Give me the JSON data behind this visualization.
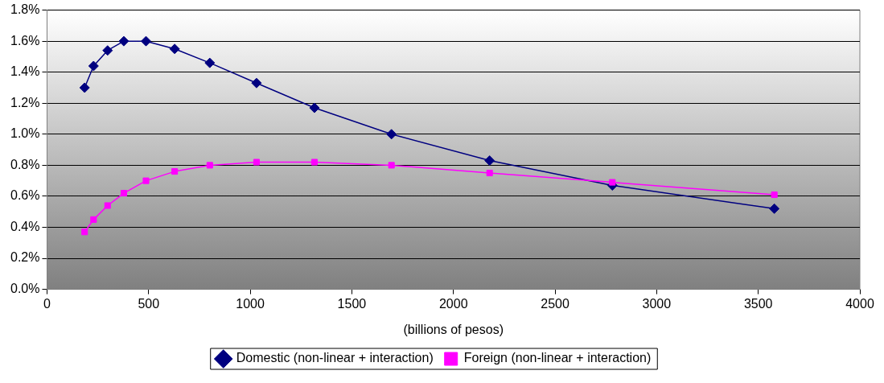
{
  "chart_data": {
    "type": "line",
    "xlabel": "(billions of pesos)",
    "x": [
      185,
      229,
      298,
      378,
      487,
      628,
      801,
      1031,
      1316,
      1695,
      2178,
      2782,
      3579
    ],
    "series": [
      {
        "name": "Domestic (non-linear + interaction)",
        "color": "#000080",
        "marker": "diamond",
        "values": [
          1.3,
          1.44,
          1.54,
          1.6,
          1.6,
          1.55,
          1.46,
          1.33,
          1.17,
          1.0,
          0.83,
          0.67,
          0.52
        ]
      },
      {
        "name": "Foreign (non-linear + interaction)",
        "color": "#ff00ff",
        "marker": "square",
        "values": [
          0.37,
          0.45,
          0.54,
          0.62,
          0.7,
          0.76,
          0.8,
          0.82,
          0.82,
          0.8,
          0.75,
          0.69,
          0.61
        ]
      }
    ],
    "xlim": [
      0,
      4000
    ],
    "xticks": [
      0,
      500,
      1000,
      1500,
      2000,
      2500,
      3000,
      3500,
      4000
    ],
    "ylim": [
      0,
      1.8
    ],
    "yticks": [
      {
        "value": 0,
        "label": "0.0%"
      },
      {
        "value": 0.2,
        "label": "0.2%"
      },
      {
        "value": 0.4,
        "label": "0.4%"
      },
      {
        "value": 0.6,
        "label": "0.6%"
      },
      {
        "value": 0.8,
        "label": "0.8%"
      },
      {
        "value": 1.0,
        "label": "1.0%"
      },
      {
        "value": 1.2,
        "label": "1.2%"
      },
      {
        "value": 1.4,
        "label": "1.4%"
      },
      {
        "value": 1.6,
        "label": "1.6%"
      },
      {
        "value": 1.8,
        "label": "1.8%"
      }
    ],
    "grid": "y",
    "legend": "bottom",
    "line_style": "solid"
  }
}
